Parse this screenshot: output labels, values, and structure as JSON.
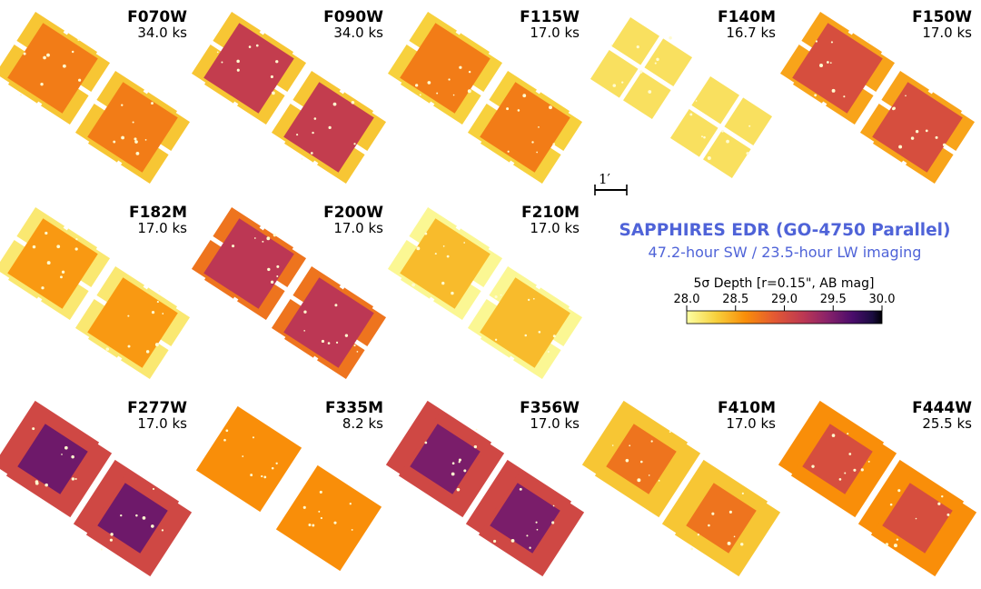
{
  "colors": {
    "title": "#4f63d8",
    "sw_deep": "#7e2d7f",
    "sw_shallow": "#ea8f27",
    "lw_medium": "#9a3768",
    "lw_shallow": "#d4641a",
    "very_shallow": "#f5e46a"
  },
  "header": {
    "title": "SAPPHIRES EDR (GO-4750 Parallel)",
    "subtitle": "47.2-hour SW / 23.5-hour LW imaging"
  },
  "scale_bar": {
    "label": "1′"
  },
  "colorbar": {
    "label": "5σ Depth [r=0.15\", AB mag]",
    "ticks": [
      "28.0",
      "28.5",
      "29.0",
      "29.5",
      "30.0"
    ],
    "colormap": "inferno_r",
    "range": [
      28.0,
      30.0
    ]
  },
  "panels": [
    {
      "filter": "F070W",
      "exposure": "34.0 ks",
      "type": "sw",
      "depth": 28.35,
      "overlap_depth": 28.7
    },
    {
      "filter": "F090W",
      "exposure": "34.0 ks",
      "type": "sw",
      "depth": 28.35,
      "overlap_depth": 29.15
    },
    {
      "filter": "F115W",
      "exposure": "17.0 ks",
      "type": "sw",
      "depth": 28.3,
      "overlap_depth": 28.7
    },
    {
      "filter": "F140M",
      "exposure": "16.7 ks",
      "type": "sw-single",
      "depth": 28.2,
      "overlap_depth": 28.2
    },
    {
      "filter": "F150W",
      "exposure": "17.0 ks",
      "type": "sw",
      "depth": 28.5,
      "overlap_depth": 29.0
    },
    {
      "filter": "F182M",
      "exposure": "17.0 ks",
      "type": "sw",
      "depth": 28.15,
      "overlap_depth": 28.55
    },
    {
      "filter": "F200W",
      "exposure": "17.0 ks",
      "type": "sw",
      "depth": 28.75,
      "overlap_depth": 29.2
    },
    {
      "filter": "F210M",
      "exposure": "17.0 ks",
      "type": "sw",
      "depth": 28.05,
      "overlap_depth": 28.4
    },
    {
      "filter": "F277W",
      "exposure": "17.0 ks",
      "type": "lw",
      "depth": 29.05,
      "overlap_depth": 29.55
    },
    {
      "filter": "F335M",
      "exposure": "8.2 ks",
      "type": "lw-single",
      "depth": 28.6,
      "overlap_depth": 28.6
    },
    {
      "filter": "F356W",
      "exposure": "17.0 ks",
      "type": "lw",
      "depth": 29.05,
      "overlap_depth": 29.5
    },
    {
      "filter": "F410M",
      "exposure": "17.0 ks",
      "type": "lw",
      "depth": 28.35,
      "overlap_depth": 28.75
    },
    {
      "filter": "F444W",
      "exposure": "25.5 ks",
      "type": "lw",
      "depth": 28.6,
      "overlap_depth": 29.0
    }
  ]
}
